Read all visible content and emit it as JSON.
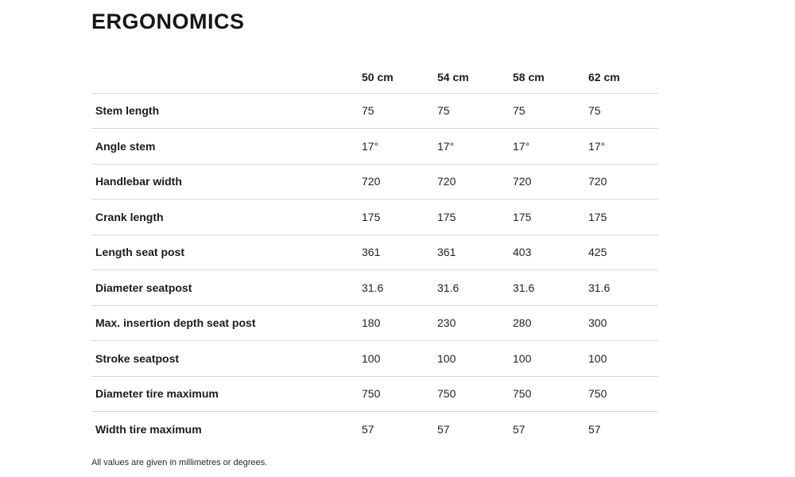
{
  "page": {
    "title": "ERGONOMICS",
    "footnote": "All values are given in millimetres or degrees."
  },
  "table": {
    "spec_header": "",
    "columns": [
      "50 cm",
      "54 cm",
      "58 cm",
      "62 cm"
    ],
    "rows": [
      {
        "label": "Stem length",
        "values": [
          "75",
          "75",
          "75",
          "75"
        ]
      },
      {
        "label": "Angle stem",
        "values": [
          "17°",
          "17°",
          "17°",
          "17°"
        ]
      },
      {
        "label": "Handlebar width",
        "values": [
          "720",
          "720",
          "720",
          "720"
        ]
      },
      {
        "label": "Crank length",
        "values": [
          "175",
          "175",
          "175",
          "175"
        ]
      },
      {
        "label": "Length seat post",
        "values": [
          "361",
          "361",
          "403",
          "425"
        ]
      },
      {
        "label": "Diameter seatpost",
        "values": [
          "31.6",
          "31.6",
          "31.6",
          "31.6"
        ]
      },
      {
        "label": "Max. insertion depth seat post",
        "values": [
          "180",
          "230",
          "280",
          "300"
        ]
      },
      {
        "label": "Stroke seatpost",
        "values": [
          "100",
          "100",
          "100",
          "100"
        ]
      },
      {
        "label": "Diameter tire maximum",
        "values": [
          "750",
          "750",
          "750",
          "750"
        ]
      },
      {
        "label": "Width tire maximum",
        "values": [
          "57",
          "57",
          "57",
          "57"
        ]
      }
    ]
  },
  "colors": {
    "text": "#1b1b1b",
    "title": "#15151a",
    "divider": "#d6d6d6",
    "background": "#ffffff"
  }
}
